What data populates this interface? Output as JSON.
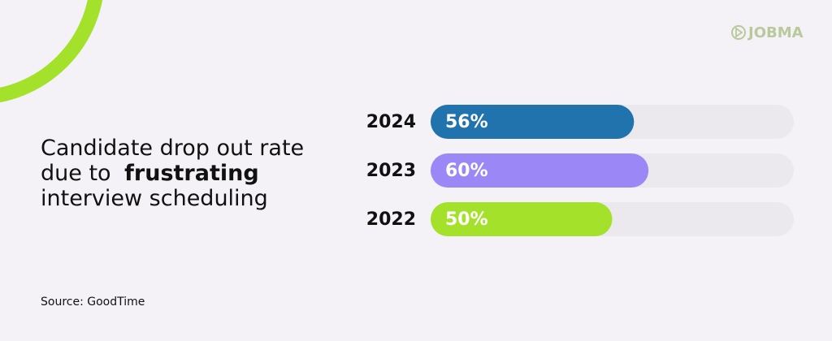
{
  "chart_data": {
    "type": "hbar",
    "title": [
      "Candidate drop out rate",
      "due to",
      "frustrating",
      "interview scheduling"
    ],
    "categories": [
      "2024",
      "2023",
      "2022"
    ],
    "values": [
      56,
      60,
      50
    ],
    "value_labels": [
      "56%",
      "60%",
      "50%"
    ],
    "colors": [
      "#2173ad",
      "#9b88f6",
      "#a4e12a"
    ],
    "xlim": [
      0,
      100
    ],
    "source": "Source: GoodTime"
  },
  "logo": "JOBMA"
}
